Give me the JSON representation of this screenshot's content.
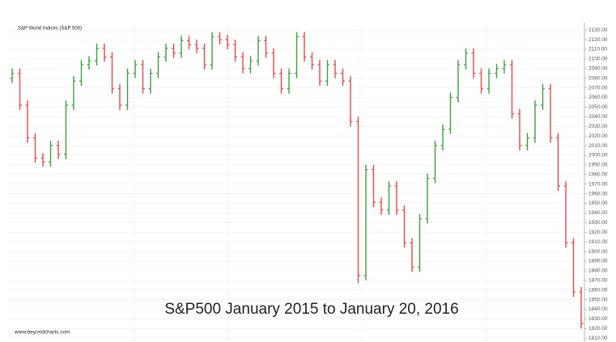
{
  "chart_data": {
    "type": "ohlc",
    "title": "S&P World Indices (S&P 500)",
    "caption": "S&P500 January 2015 to January 20, 2016",
    "source": "www.beyondcharts.com",
    "up_color": "#3f9e3f",
    "down_color": "#e04a4a",
    "grid": true,
    "ylim": [
      1806,
      2136
    ],
    "yticks": [
      {
        "value": 1810,
        "label": "1810.00"
      },
      {
        "value": 1820,
        "label": "1820.00"
      },
      {
        "value": 1830,
        "label": "1830.00"
      },
      {
        "value": 1840,
        "label": "1840.00"
      },
      {
        "value": 1850,
        "label": "1850.00"
      },
      {
        "value": 1860,
        "label": "1860.00"
      },
      {
        "value": 1870,
        "label": "1870.00"
      },
      {
        "value": 1880,
        "label": "1880.00"
      },
      {
        "value": 1890,
        "label": "1890.00"
      },
      {
        "value": 1900,
        "label": "1900.00"
      },
      {
        "value": 1910,
        "label": "1910.00"
      },
      {
        "value": 1920,
        "label": "1920.00"
      },
      {
        "value": 1930,
        "label": "1930.00"
      },
      {
        "value": 1940,
        "label": "1940.00"
      },
      {
        "value": 1950,
        "label": "1950.00"
      },
      {
        "value": 1960,
        "label": "1960.00"
      },
      {
        "value": 1970,
        "label": "1970.00"
      },
      {
        "value": 1980,
        "label": "1980.00"
      },
      {
        "value": 1990,
        "label": "1990.00"
      },
      {
        "value": 2000,
        "label": "2000.00"
      },
      {
        "value": 2010,
        "label": "2010.00"
      },
      {
        "value": 2020,
        "label": "2020.00"
      },
      {
        "value": 2030,
        "label": "2030.00"
      },
      {
        "value": 2040,
        "label": "2040.00"
      },
      {
        "value": 2050,
        "label": "2050.00"
      },
      {
        "value": 2060,
        "label": "2060.00"
      },
      {
        "value": 2070,
        "label": "2070.00"
      },
      {
        "value": 2080,
        "label": "2080.00"
      },
      {
        "value": 2090,
        "label": "2090.00"
      },
      {
        "value": 2100,
        "label": "2100.00"
      },
      {
        "value": 2110,
        "label": "2110.00"
      },
      {
        "value": 2120,
        "label": "2120.00"
      },
      {
        "value": 2130,
        "label": "2130.00"
      }
    ],
    "open": [
      2080,
      2085,
      2052,
      2018,
      1997,
      1993,
      2010,
      2001,
      2052,
      2077,
      2094,
      2098,
      2111,
      2102,
      2069,
      2052,
      2085,
      2094,
      2069,
      2085,
      2102,
      2111,
      2106,
      2119,
      2115,
      2111,
      2094,
      2123,
      2120,
      2115,
      2102,
      2090,
      2098,
      2119,
      2106,
      2085,
      2069,
      2085,
      2123,
      2102,
      2094,
      2077,
      2094,
      2085,
      2077,
      2035,
      1875,
      1985,
      1951,
      1943,
      1968,
      1943,
      1909,
      1884,
      1934,
      1976,
      2010,
      2027,
      2060,
      2094,
      2106,
      2085,
      2069,
      2085,
      2090,
      2094,
      2043,
      2010,
      2018,
      2052,
      2069,
      2018,
      1968,
      1909,
      1858
    ],
    "high": [
      2090,
      2090,
      2057,
      2023,
      2002,
      2015,
      2015,
      2057,
      2082,
      2099,
      2103,
      2116,
      2116,
      2107,
      2074,
      2090,
      2099,
      2099,
      2090,
      2107,
      2116,
      2116,
      2124,
      2124,
      2120,
      2116,
      2128,
      2128,
      2125,
      2120,
      2107,
      2103,
      2124,
      2124,
      2111,
      2090,
      2090,
      2128,
      2128,
      2107,
      2099,
      2099,
      2099,
      2090,
      2082,
      2040,
      1990,
      1990,
      1956,
      1973,
      1973,
      1948,
      1914,
      1939,
      1981,
      2015,
      2032,
      2065,
      2099,
      2111,
      2111,
      2090,
      2090,
      2095,
      2099,
      2099,
      2048,
      2023,
      2057,
      2074,
      2074,
      2023,
      1973,
      1914,
      1863
    ],
    "low": [
      2075,
      2047,
      2013,
      1992,
      1988,
      1988,
      1996,
      1996,
      2047,
      2072,
      2089,
      2093,
      2097,
      2064,
      2047,
      2047,
      2080,
      2064,
      2064,
      2080,
      2097,
      2101,
      2101,
      2110,
      2106,
      2089,
      2089,
      2115,
      2110,
      2097,
      2085,
      2085,
      2093,
      2101,
      2080,
      2064,
      2064,
      2080,
      2097,
      2089,
      2072,
      2072,
      2080,
      2072,
      2030,
      1867,
      1870,
      1946,
      1938,
      1938,
      1938,
      1904,
      1879,
      1879,
      1929,
      1971,
      2005,
      2022,
      2055,
      2089,
      2080,
      2064,
      2064,
      2080,
      2085,
      2038,
      2005,
      2005,
      2013,
      2047,
      2013,
      1963,
      1904,
      1853,
      1820
    ],
    "close": [
      2085,
      2052,
      2018,
      1997,
      1993,
      2010,
      2001,
      2052,
      2077,
      2094,
      2098,
      2111,
      2102,
      2069,
      2052,
      2085,
      2094,
      2069,
      2085,
      2102,
      2111,
      2106,
      2119,
      2115,
      2111,
      2094,
      2123,
      2120,
      2115,
      2102,
      2090,
      2098,
      2119,
      2106,
      2085,
      2069,
      2085,
      2123,
      2102,
      2094,
      2077,
      2094,
      2085,
      2077,
      2035,
      1875,
      1985,
      1951,
      1943,
      1968,
      1943,
      1909,
      1884,
      1934,
      1976,
      2010,
      2027,
      2060,
      2094,
      2106,
      2085,
      2069,
      2085,
      2090,
      2094,
      2043,
      2010,
      2018,
      2052,
      2069,
      2018,
      1968,
      1909,
      1858,
      1825
    ]
  }
}
